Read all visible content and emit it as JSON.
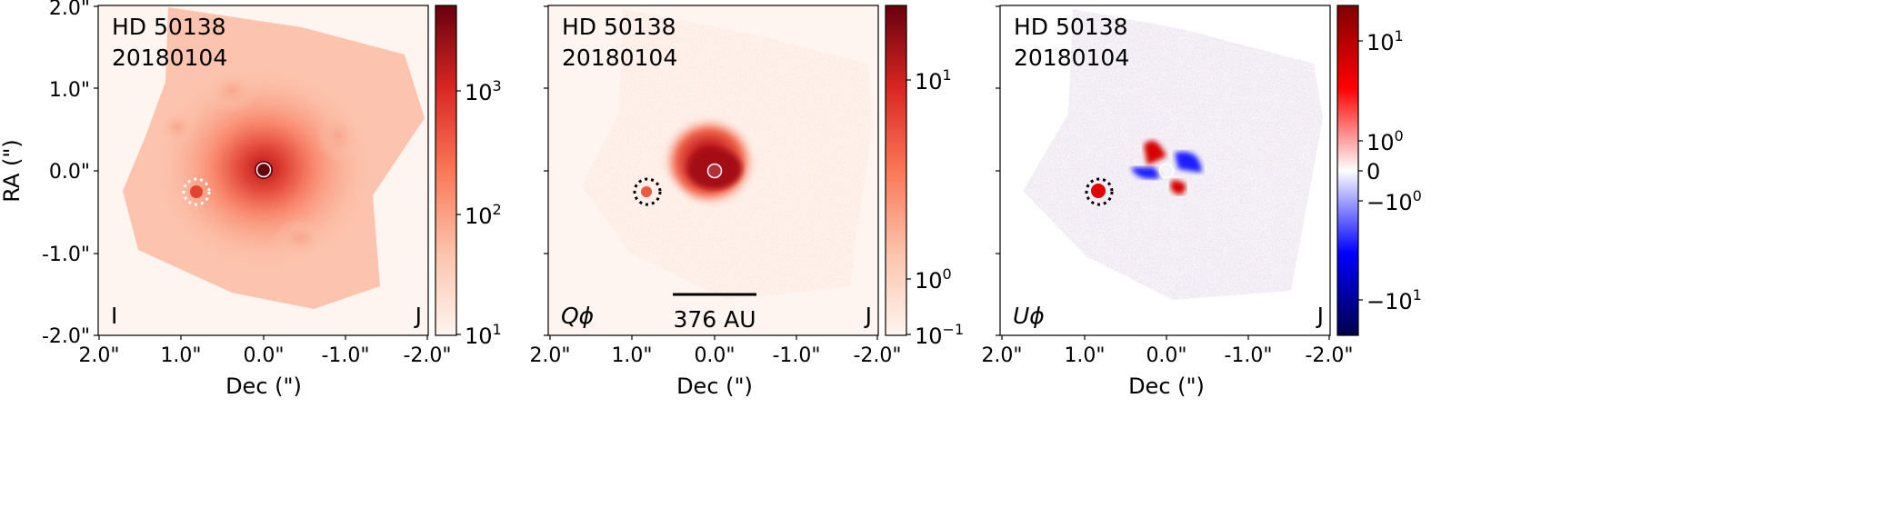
{
  "figure": {
    "y_axis_label": "RA (\")",
    "panels": [
      {
        "id": "I",
        "star": "HD 50138",
        "date": "20180104",
        "stokes": "I",
        "band": "J",
        "x_label": "Dec (\")",
        "x_ticks": [
          "2.0\"",
          "1.0\"",
          "0.0\"",
          "-1.0\"",
          "-2.0\""
        ],
        "y_ticks": [
          "2.0\"",
          "1.0\"",
          "0.0\"",
          "-1.0\"",
          "-2.0\""
        ],
        "colorbar": {
          "scale": "log",
          "colormap": "Reds",
          "ticks": [
            {
              "base": "10",
              "exp": "3"
            },
            {
              "base": "10",
              "exp": "2"
            },
            {
              "base": "10",
              "exp": "1"
            }
          ]
        },
        "marker_color": "#ffffff"
      },
      {
        "id": "Qphi",
        "star": "HD 50138",
        "date": "20180104",
        "stokes": "Qϕ",
        "band": "J",
        "scale_bar": "376 AU",
        "x_label": "Dec (\")",
        "x_ticks": [
          "2.0\"",
          "1.0\"",
          "0.0\"",
          "-1.0\"",
          "-2.0\""
        ],
        "colorbar": {
          "scale": "log",
          "colormap": "Reds",
          "ticks": [
            {
              "base": "10",
              "exp": "1"
            },
            {
              "base": "10",
              "exp": "0"
            },
            {
              "base": "10",
              "exp": "−1"
            }
          ]
        },
        "marker_color": "#000000"
      },
      {
        "id": "Uphi",
        "star": "HD 50138",
        "date": "20180104",
        "stokes": "Uϕ",
        "band": "J",
        "x_label": "Dec (\")",
        "x_ticks": [
          "2.0\"",
          "1.0\"",
          "0.0\"",
          "-1.0\"",
          "-2.0\""
        ],
        "colorbar": {
          "scale": "symlog",
          "colormap": "seismic",
          "ticks": [
            {
              "base": "10",
              "exp": "1"
            },
            {
              "base": "10",
              "exp": "0"
            },
            {
              "base": "0",
              "exp": ""
            },
            {
              "base": "−10",
              "exp": "0"
            },
            {
              "base": "−10",
              "exp": "1"
            }
          ]
        },
        "marker_color": "#000000"
      }
    ]
  }
}
